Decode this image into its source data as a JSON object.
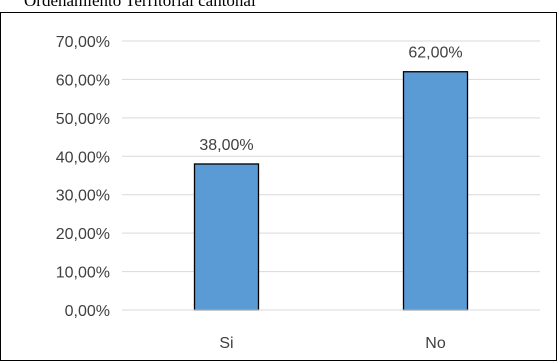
{
  "caption": "Ordenamiento Territorial cantonal",
  "colors": {
    "bar_fill": "#5b9bd5",
    "bar_stroke": "#000000",
    "gridline": "#d9d9d9",
    "text": "#404040"
  },
  "chart_data": {
    "type": "bar",
    "categories": [
      "Si",
      "No"
    ],
    "values": [
      38.0,
      62.0
    ],
    "data_labels": [
      "38,00%",
      "62,00%"
    ],
    "y_ticks": [
      0,
      10,
      20,
      30,
      40,
      50,
      60,
      70
    ],
    "y_tick_labels": [
      "0,00%",
      "10,00%",
      "20,00%",
      "30,00%",
      "40,00%",
      "50,00%",
      "60,00%",
      "70,00%"
    ],
    "ylim": [
      0,
      70
    ],
    "grid": true,
    "legend": "none"
  }
}
